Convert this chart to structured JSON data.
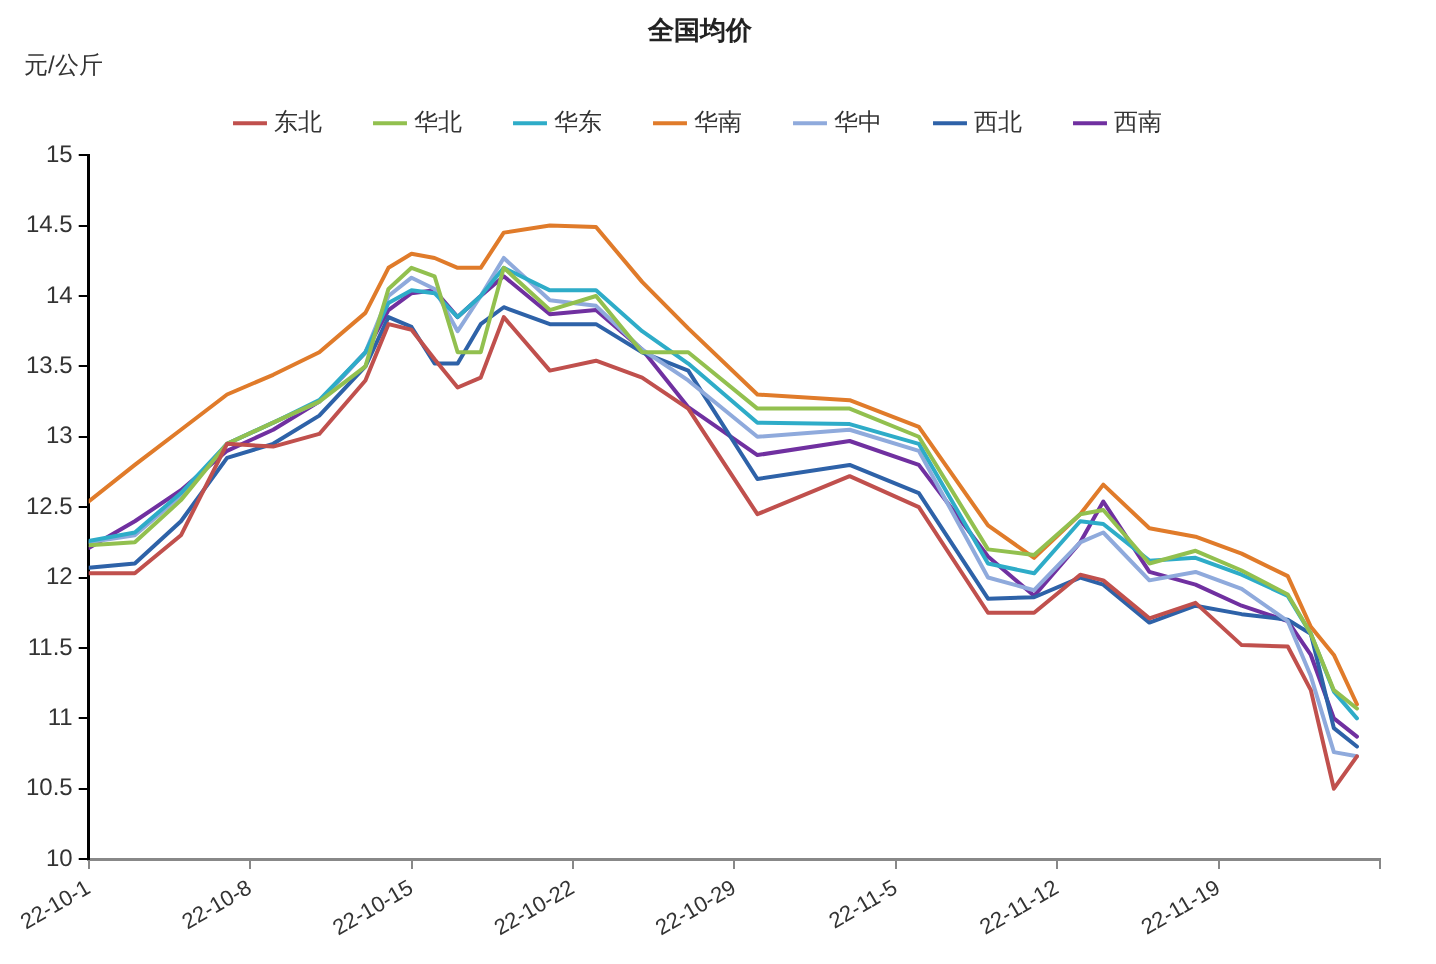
{
  "chart_data": {
    "type": "line",
    "title": "全国均价",
    "ylabel": "元/公斤",
    "x": [
      "--10-01",
      "--10-03",
      "--10-05",
      "--10-07",
      "--10-09",
      "--10-11",
      "--10-13",
      "--10-14",
      "--10-15",
      "--10-16",
      "--10-17",
      "--10-18",
      "--10-19",
      "--10-21",
      "--10-23",
      "--10-25",
      "--10-27",
      "--10-30",
      "--11-03",
      "--11-06",
      "--11-09",
      "--11-11",
      "--11-13",
      "--11-14",
      "--11-16",
      "--11-18",
      "--11-20",
      "--11-22",
      "--11-23",
      "--11-24",
      "--11-25"
    ],
    "series": [
      {
        "name": "东北",
        "color": "#c0504d",
        "values": [
          12.03,
          12.03,
          12.3,
          12.95,
          12.93,
          13.02,
          13.4,
          13.8,
          13.76,
          13.55,
          13.35,
          13.42,
          13.85,
          13.47,
          13.54,
          13.42,
          13.2,
          12.45,
          12.72,
          12.5,
          11.75,
          11.75,
          12.02,
          11.98,
          11.71,
          11.82,
          11.52,
          11.51,
          11.2,
          10.5,
          10.73
        ]
      },
      {
        "name": "华北",
        "color": "#92c04f",
        "values": [
          12.23,
          12.25,
          12.55,
          12.95,
          13.1,
          13.25,
          13.5,
          14.05,
          14.2,
          14.14,
          13.6,
          13.6,
          14.2,
          13.9,
          14.0,
          13.6,
          13.6,
          13.2,
          13.2,
          13.0,
          12.2,
          12.16,
          12.45,
          12.48,
          12.1,
          12.19,
          12.05,
          11.88,
          11.6,
          11.2,
          11.07
        ]
      },
      {
        "name": "华东",
        "color": "#2eacc8",
        "values": [
          12.26,
          12.32,
          12.6,
          12.95,
          13.1,
          13.26,
          13.6,
          13.95,
          14.04,
          14.02,
          13.85,
          14.0,
          14.2,
          14.04,
          14.04,
          13.75,
          13.52,
          13.1,
          13.09,
          12.95,
          12.1,
          12.03,
          12.4,
          12.38,
          12.12,
          12.14,
          12.02,
          11.87,
          11.6,
          11.19,
          11.0
        ]
      },
      {
        "name": "华南",
        "color": "#e07b2a",
        "values": [
          12.54,
          12.8,
          13.05,
          13.3,
          13.44,
          13.6,
          13.88,
          14.2,
          14.3,
          14.27,
          14.2,
          14.2,
          14.45,
          14.5,
          14.49,
          14.1,
          13.77,
          13.3,
          13.26,
          13.07,
          12.37,
          12.14,
          12.45,
          12.66,
          12.35,
          12.29,
          12.17,
          12.01,
          11.65,
          11.45,
          11.1
        ]
      },
      {
        "name": "华中",
        "color": "#8faadc",
        "values": [
          12.25,
          12.3,
          12.58,
          12.95,
          13.1,
          13.25,
          13.6,
          14.0,
          14.13,
          14.05,
          13.75,
          14.0,
          14.27,
          13.97,
          13.93,
          13.62,
          13.4,
          13.0,
          13.05,
          12.9,
          12.0,
          11.91,
          12.25,
          12.32,
          11.98,
          12.04,
          11.92,
          11.69,
          11.3,
          10.76,
          10.73
        ]
      },
      {
        "name": "西北",
        "color": "#2e62a8",
        "values": [
          12.07,
          12.1,
          12.4,
          12.85,
          12.95,
          13.15,
          13.5,
          13.85,
          13.78,
          13.52,
          13.52,
          13.8,
          13.92,
          13.8,
          13.8,
          13.6,
          13.47,
          12.7,
          12.8,
          12.6,
          11.85,
          11.86,
          12.0,
          11.95,
          11.68,
          11.8,
          11.74,
          11.7,
          11.6,
          10.93,
          10.8
        ]
      },
      {
        "name": "西南",
        "color": "#7030a0",
        "values": [
          12.21,
          12.4,
          12.62,
          12.9,
          13.05,
          13.25,
          13.6,
          13.9,
          14.02,
          14.04,
          13.85,
          14.0,
          14.14,
          13.87,
          13.9,
          13.62,
          13.21,
          12.87,
          12.97,
          12.8,
          12.15,
          11.87,
          12.25,
          12.54,
          12.04,
          11.95,
          11.8,
          11.69,
          11.45,
          11.0,
          10.87
        ]
      }
    ],
    "xlim": [
      "--10-01",
      "--11-26"
    ],
    "xticks": [
      {
        "value": "--10-01",
        "label": "22-10-1"
      },
      {
        "value": "--10-08",
        "label": "22-10-8"
      },
      {
        "value": "--10-15",
        "label": "22-10-15"
      },
      {
        "value": "--10-22",
        "label": "22-10-22"
      },
      {
        "value": "--10-29",
        "label": "22-10-29"
      },
      {
        "value": "--11-05",
        "label": "22-11-5"
      },
      {
        "value": "--11-12",
        "label": "22-11-12"
      },
      {
        "value": "--11-19",
        "label": "22-11-19"
      },
      {
        "value": "--11-26",
        "label": null
      }
    ],
    "ylim": [
      10,
      15
    ],
    "yticks": [
      10,
      10.5,
      11,
      11.5,
      12,
      12.5,
      13,
      13.5,
      14,
      14.5,
      15
    ],
    "grid": false,
    "legend": "top",
    "marker": "none",
    "line_style": "solid"
  }
}
